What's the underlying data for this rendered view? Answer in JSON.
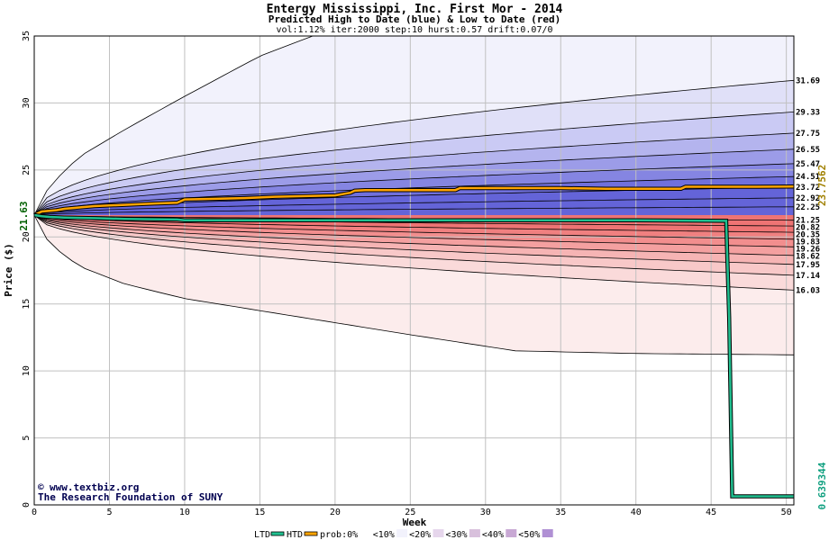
{
  "chart_data": {
    "type": "area",
    "title": "Entergy Mississippi, Inc. First Mor - 2014",
    "subtitle": "Predicted High to Date (blue) &  Low to Date (red)",
    "params": "vol:1.12% iter:2000 step:10 hurst:0.57 drift:0.07/0",
    "xlabel": "Week",
    "ylabel": "Price ($)",
    "xlim": [
      0,
      50.5
    ],
    "ylim": [
      0,
      35
    ],
    "x_ticks": [
      0,
      5,
      10,
      15,
      20,
      25,
      30,
      35,
      40,
      45,
      50
    ],
    "y_ticks": [
      0,
      5,
      10,
      15,
      20,
      25,
      30,
      35
    ],
    "start_price": 21.63,
    "start_label": "21.63",
    "high_final_label": "23.7562",
    "low_final_label": "0.639344",
    "high_levels": [
      31.69,
      29.33,
      27.75,
      26.55,
      25.47,
      24.51,
      23.72,
      22.92,
      22.25
    ],
    "low_levels": [
      21.25,
      20.82,
      20.35,
      19.83,
      19.26,
      18.62,
      17.95,
      17.14,
      16.03
    ],
    "high_level_labels": [
      "31.69",
      "29.33",
      "27.75",
      "26.55",
      "25.47",
      "24.51",
      "23.72",
      "22.92",
      "22.25"
    ],
    "low_level_labels": [
      "21.25",
      "20.82",
      "20.35",
      "19.83",
      "19.26",
      "18.62",
      "17.95",
      "17.14",
      "16.03"
    ],
    "outer_high": {
      "x": [
        0,
        1,
        3,
        6,
        10,
        15,
        18.5
      ],
      "y": [
        21.63,
        23.8,
        26.0,
        28.0,
        30.5,
        33.5,
        35
      ]
    },
    "outer_low": {
      "x": [
        0,
        1,
        3,
        6,
        10,
        15,
        20,
        25,
        32,
        40,
        50.5
      ],
      "y": [
        21.63,
        19.5,
        17.8,
        16.5,
        15.4,
        14.5,
        13.6,
        12.7,
        11.5,
        11.3,
        11.2
      ]
    },
    "series": [
      {
        "name": "HTD",
        "color": "#ffa500",
        "x": [
          0,
          0.5,
          1.5,
          2,
          3,
          4,
          5,
          6,
          8,
          9.5,
          10,
          12,
          14,
          16,
          18,
          20,
          21,
          21.3,
          22,
          24,
          26,
          28,
          28.3,
          30,
          32,
          35,
          38,
          40,
          43,
          43.3,
          45,
          48,
          50.5
        ],
        "y": [
          21.63,
          21.9,
          22.0,
          22.1,
          22.2,
          22.3,
          22.35,
          22.4,
          22.5,
          22.55,
          22.8,
          22.85,
          22.9,
          23.0,
          23.05,
          23.1,
          23.3,
          23.45,
          23.5,
          23.5,
          23.5,
          23.5,
          23.65,
          23.65,
          23.65,
          23.65,
          23.6,
          23.6,
          23.6,
          23.75,
          23.75,
          23.75,
          23.76
        ]
      },
      {
        "name": "LTD",
        "color": "#20c090",
        "x": [
          0,
          0.5,
          1,
          2,
          4,
          6,
          9.5,
          10,
          20,
          30,
          40,
          46.0,
          46.2,
          46.4,
          50.5
        ],
        "y": [
          21.63,
          21.55,
          21.5,
          21.45,
          21.4,
          21.35,
          21.3,
          21.25,
          21.25,
          21.25,
          21.25,
          21.2,
          14.0,
          0.64,
          0.64
        ]
      }
    ],
    "legend": {
      "position": "bottom",
      "items": [
        "LTD",
        "HTD",
        "prob:0%",
        "<10%",
        "<20%",
        "<30%",
        "<40%",
        "<50%"
      ]
    },
    "colors": {
      "blue_bands": [
        "#f2f2fc",
        "#e0e0f8",
        "#cacaf4",
        "#b4b4ee",
        "#9c9ce8",
        "#8585e2",
        "#7070dc",
        "#6464d8"
      ],
      "red_bands": [
        "#fcecec",
        "#fadada",
        "#f8c8c8",
        "#f6b4b4",
        "#f4a0a0",
        "#f28e8e",
        "#f08080",
        "#ee7474"
      ],
      "legend_swatches": [
        "#ffffff",
        "#f2f2fc",
        "#e6d6ec",
        "#d8c0dc",
        "#c8a8d4",
        "#b090d4"
      ]
    },
    "grid": true
  },
  "credits": {
    "site": "www.textbiz.org",
    "org": "The Research Foundation of SUNY"
  }
}
